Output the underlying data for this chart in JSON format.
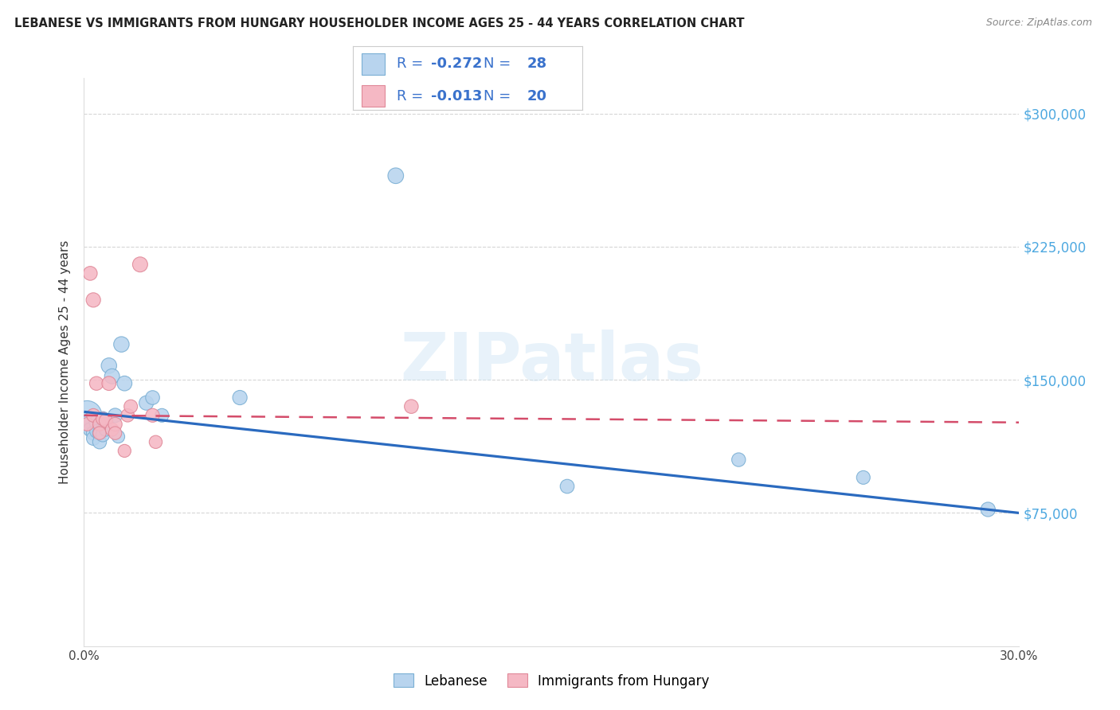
{
  "title": "LEBANESE VS IMMIGRANTS FROM HUNGARY HOUSEHOLDER INCOME AGES 25 - 44 YEARS CORRELATION CHART",
  "source": "Source: ZipAtlas.com",
  "ylabel": "Householder Income Ages 25 - 44 years",
  "xmin": 0.0,
  "xmax": 0.3,
  "ymin": 0,
  "ymax": 320000,
  "yticks": [
    75000,
    150000,
    225000,
    300000
  ],
  "ytick_labels": [
    "$75,000",
    "$150,000",
    "$225,000",
    "$300,000"
  ],
  "blue_line_color": "#2a6abf",
  "pink_line_color": "#d44c6a",
  "blue_dot_color": "#b8d4ee",
  "blue_dot_edge": "#7aafd4",
  "pink_dot_color": "#f5b8c4",
  "pink_dot_edge": "#e08898",
  "right_axis_label_color": "#4da8e0",
  "legend_text_color": "#3a72cc",
  "legend_r1": "-0.272",
  "legend_n1": "28",
  "legend_r2": "-0.013",
  "legend_n2": "20",
  "watermark": "ZIPatlas",
  "background_color": "#ffffff",
  "grid_color": "#cccccc",
  "lebanese_x": [
    0.001,
    0.001,
    0.002,
    0.002,
    0.003,
    0.003,
    0.004,
    0.004,
    0.005,
    0.005,
    0.006,
    0.006,
    0.007,
    0.008,
    0.009,
    0.01,
    0.011,
    0.012,
    0.013,
    0.02,
    0.022,
    0.025,
    0.05,
    0.1,
    0.155,
    0.21,
    0.25,
    0.29
  ],
  "lebanese_y": [
    130000,
    125000,
    127000,
    122000,
    120000,
    117000,
    126000,
    121000,
    120000,
    115000,
    128000,
    119000,
    122000,
    158000,
    152000,
    130000,
    118000,
    170000,
    148000,
    137000,
    140000,
    130000,
    140000,
    265000,
    90000,
    105000,
    95000,
    77000
  ],
  "lebanese_sizes": [
    700,
    180,
    200,
    160,
    160,
    155,
    170,
    145,
    165,
    155,
    175,
    155,
    145,
    195,
    185,
    165,
    135,
    195,
    180,
    170,
    160,
    150,
    170,
    200,
    160,
    155,
    150,
    170
  ],
  "hungary_x": [
    0.001,
    0.002,
    0.003,
    0.003,
    0.004,
    0.005,
    0.005,
    0.006,
    0.007,
    0.008,
    0.009,
    0.01,
    0.01,
    0.013,
    0.014,
    0.015,
    0.018,
    0.022,
    0.023,
    0.105
  ],
  "hungary_y": [
    125000,
    210000,
    195000,
    130000,
    148000,
    125000,
    120000,
    128000,
    127000,
    148000,
    122000,
    125000,
    120000,
    110000,
    130000,
    135000,
    215000,
    130000,
    115000,
    135000
  ],
  "hungary_sizes": [
    145,
    160,
    170,
    148,
    155,
    148,
    140,
    142,
    148,
    162,
    144,
    155,
    140,
    135,
    142,
    148,
    185,
    152,
    138,
    158
  ],
  "leb_line_x0": 0.0,
  "leb_line_y0": 132000,
  "leb_line_x1": 0.3,
  "leb_line_y1": 75000,
  "hun_line_x0": 0.0,
  "hun_line_y0": 130000,
  "hun_line_x1": 0.3,
  "hun_line_y1": 126000
}
